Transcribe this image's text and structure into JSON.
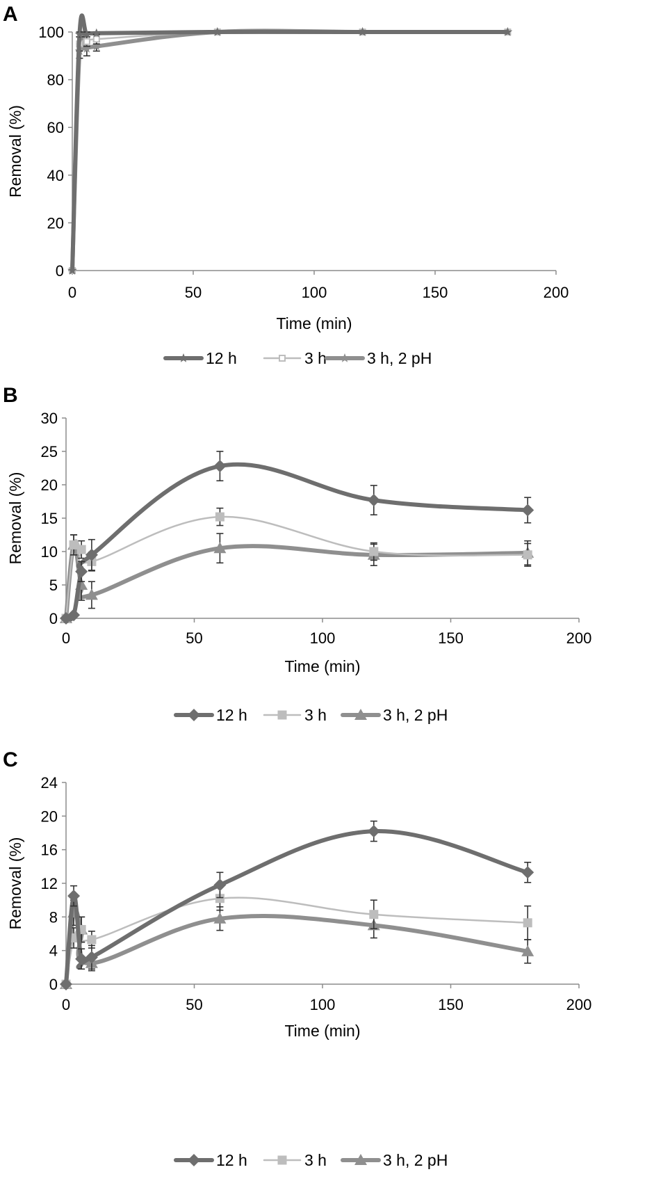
{
  "colors": {
    "series_12h": "#6e6e6e",
    "series_3h": "#bdbdbd",
    "series_3h2pH": "#8f8f8f",
    "axis": "#8c8c8c",
    "error_bar": "#333333"
  },
  "chart_data": [
    {
      "panel": "A",
      "type": "line",
      "xlabel": "Time (min)",
      "ylabel": "Removal (%)",
      "xlim": [
        0,
        200
      ],
      "ylim": [
        0,
        100
      ],
      "xticks": [
        0,
        50,
        100,
        150,
        200
      ],
      "yticks": [
        0,
        20,
        40,
        60,
        80,
        100
      ],
      "legend_position": "bottom",
      "series": [
        {
          "name": "12 h",
          "x": [
            0,
            3,
            6,
            10,
            60,
            120,
            180
          ],
          "y": [
            0,
            99,
            99,
            99.5,
            100,
            100,
            100
          ],
          "err": [
            0,
            1,
            1,
            0.5,
            0,
            0,
            0
          ],
          "marker": "star"
        },
        {
          "name": "3 h",
          "x": [
            0,
            3,
            6,
            10,
            60,
            120,
            180
          ],
          "y": [
            0,
            95,
            96,
            97,
            100,
            100,
            100
          ],
          "err": [
            0,
            3,
            2,
            2,
            0,
            0,
            0
          ],
          "marker": "square-open"
        },
        {
          "name": "3 h, 2 pH",
          "x": [
            0,
            3,
            6,
            10,
            60,
            120,
            180
          ],
          "y": [
            0,
            92,
            93,
            94,
            100,
            100,
            100
          ],
          "err": [
            0,
            3,
            3,
            2,
            0,
            0,
            0
          ],
          "marker": "star"
        }
      ]
    },
    {
      "panel": "B",
      "type": "line",
      "xlabel": "Time (min)",
      "ylabel": "Removal (%)",
      "xlim": [
        0,
        200
      ],
      "ylim": [
        0,
        30
      ],
      "xticks": [
        0,
        50,
        100,
        150,
        200
      ],
      "yticks": [
        0,
        5,
        10,
        15,
        20,
        25,
        30
      ],
      "legend_position": "bottom",
      "series": [
        {
          "name": "12 h",
          "x": [
            0,
            3,
            6,
            10,
            60,
            120,
            180
          ],
          "y": [
            0,
            0.5,
            7,
            9.5,
            22.8,
            17.7,
            16.2
          ],
          "err": [
            0,
            0.3,
            1.5,
            2.3,
            2.2,
            2.2,
            1.9
          ],
          "marker": "diamond"
        },
        {
          "name": "3 h",
          "x": [
            0,
            3,
            6,
            10,
            60,
            120,
            180
          ],
          "y": [
            0,
            11,
            10.3,
            8.5,
            15.2,
            10,
            9.5
          ],
          "err": [
            0,
            1.5,
            1.3,
            1.4,
            1.3,
            1.3,
            1.7
          ],
          "marker": "square"
        },
        {
          "name": "3 h, 2 pH",
          "x": [
            0,
            3,
            6,
            10,
            60,
            120,
            180
          ],
          "y": [
            0,
            11,
            5,
            3.5,
            10.5,
            9.5,
            9.8
          ],
          "err": [
            0,
            1.5,
            2.3,
            2.0,
            2.2,
            1.6,
            1.8
          ],
          "marker": "triangle"
        }
      ]
    },
    {
      "panel": "C",
      "type": "line",
      "xlabel": "Time (min)",
      "ylabel": "Removal (%)",
      "xlim": [
        0,
        200
      ],
      "ylim": [
        0,
        24
      ],
      "xticks": [
        0,
        50,
        100,
        150,
        200
      ],
      "yticks": [
        0,
        4,
        8,
        12,
        16,
        20,
        24
      ],
      "legend_position": "bottom",
      "series": [
        {
          "name": "12 h",
          "x": [
            0,
            3,
            6,
            10,
            60,
            120,
            180
          ],
          "y": [
            0,
            10.5,
            3,
            3.2,
            11.8,
            18.2,
            13.3
          ],
          "err": [
            0,
            1.2,
            1.2,
            1.4,
            1.5,
            1.2,
            1.2
          ],
          "marker": "diamond"
        },
        {
          "name": "3 h",
          "x": [
            0,
            3,
            6,
            10,
            60,
            120,
            180
          ],
          "y": [
            0,
            5.5,
            6.5,
            5.3,
            10.2,
            8.3,
            7.3
          ],
          "err": [
            0,
            1.2,
            1.5,
            1.0,
            1.4,
            1.7,
            2.0
          ],
          "marker": "square"
        },
        {
          "name": "3 h, 2 pH",
          "x": [
            0,
            3,
            6,
            10,
            60,
            120,
            180
          ],
          "y": [
            0,
            8.5,
            6.5,
            2.5,
            7.8,
            7.0,
            3.9
          ],
          "err": [
            0,
            1.5,
            1.5,
            0.9,
            1.4,
            1.5,
            1.4
          ],
          "marker": "triangle"
        }
      ]
    }
  ]
}
